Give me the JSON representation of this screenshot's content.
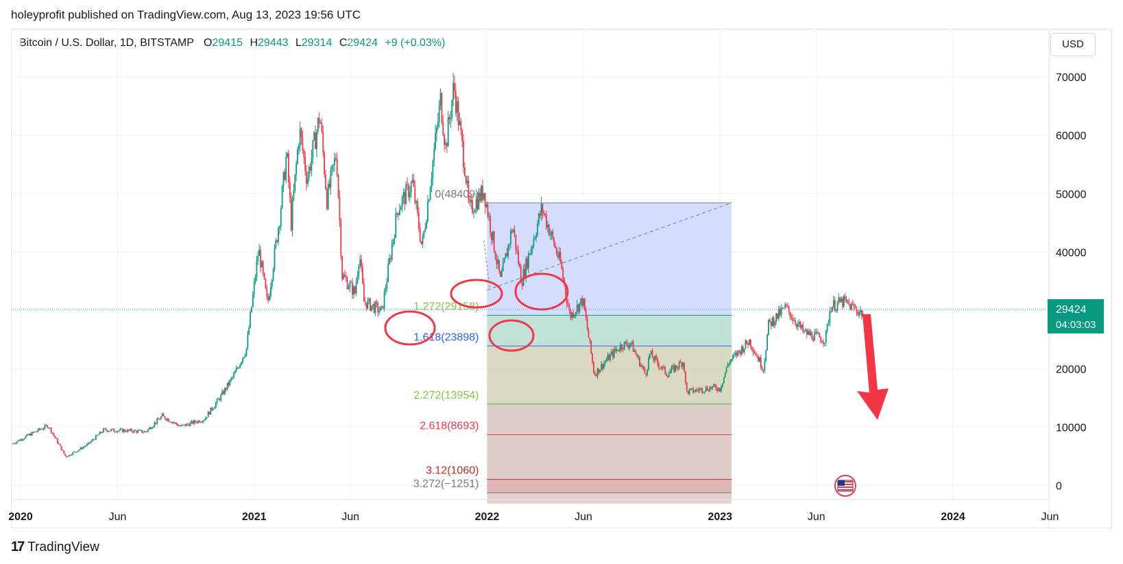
{
  "header": {
    "publish_line": "holeyprofit published on TradingView.com, Aug 13, 2023 19:56 UTC"
  },
  "symbol": {
    "name": "Bitcoin / U.S. Dollar, 1D, BITSTAMP",
    "open_label": "O",
    "open": "29415",
    "high_label": "H",
    "high": "29443",
    "low_label": "L",
    "low": "29314",
    "close_label": "C",
    "close": "29424",
    "change": "+9 (+0.03%)"
  },
  "currency_button": "USD",
  "price_tag": {
    "price": "29424",
    "countdown": "04:03:03"
  },
  "footer": {
    "logo_mark": "17",
    "brand": "TradingView"
  },
  "colors": {
    "up": "#089981",
    "down": "#f23645",
    "fib_top": "#cdd7fb",
    "fib_mid1": "#b7dcd0",
    "fib_mid2": "#d2d4b6",
    "fib_low": "#d9c4bf",
    "annotation": "#f23645"
  },
  "chart_data": {
    "type": "candlestick",
    "symbol": "Bitcoin / U.S. Dollar",
    "interval": "1D",
    "exchange": "BITSTAMP",
    "y_axis": {
      "ticks": [
        0,
        10000,
        20000,
        30000,
        40000,
        50000,
        60000,
        70000
      ],
      "ylim": [
        -2400,
        72600
      ],
      "position": "right"
    },
    "x_axis": {
      "ticks": [
        "2020",
        "Jun",
        "2021",
        "Jun",
        "2022",
        "Jun",
        "2023",
        "Jun",
        "2024",
        "Jun"
      ]
    },
    "current_price": 29424,
    "price_path": [
      [
        "2019-12-20",
        7200
      ],
      [
        "2020-01-15",
        8700
      ],
      [
        "2020-02-13",
        10300
      ],
      [
        "2020-03-12",
        4900
      ],
      [
        "2020-04-15",
        7000
      ],
      [
        "2020-05-10",
        9500
      ],
      [
        "2020-06-15",
        9400
      ],
      [
        "2020-07-15",
        9200
      ],
      [
        "2020-08-10",
        11900
      ],
      [
        "2020-09-08",
        10100
      ],
      [
        "2020-10-15",
        11400
      ],
      [
        "2020-11-10",
        15300
      ],
      [
        "2020-12-01",
        19000
      ],
      [
        "2020-12-20",
        23500
      ],
      [
        "2021-01-08",
        40500
      ],
      [
        "2021-01-22",
        31000
      ],
      [
        "2021-02-10",
        46000
      ],
      [
        "2021-02-21",
        57000
      ],
      [
        "2021-02-28",
        45000
      ],
      [
        "2021-03-13",
        61000
      ],
      [
        "2021-03-25",
        52500
      ],
      [
        "2021-04-14",
        63500
      ],
      [
        "2021-04-25",
        49000
      ],
      [
        "2021-05-10",
        57000
      ],
      [
        "2021-05-19",
        36000
      ],
      [
        "2021-06-08",
        33000
      ],
      [
        "2021-06-15",
        40000
      ],
      [
        "2021-06-22",
        31500
      ],
      [
        "2021-07-20",
        29800
      ],
      [
        "2021-08-14",
        47500
      ],
      [
        "2021-09-06",
        51800
      ],
      [
        "2021-09-21",
        40700
      ],
      [
        "2021-10-20",
        66000
      ],
      [
        "2021-10-28",
        58000
      ],
      [
        "2021-11-10",
        68500
      ],
      [
        "2021-11-28",
        54000
      ],
      [
        "2021-12-04",
        47000
      ],
      [
        "2021-12-27",
        50500
      ],
      [
        "2022-01-22",
        35000
      ],
      [
        "2022-02-10",
        44500
      ],
      [
        "2022-02-24",
        35000
      ],
      [
        "2022-03-28",
        47600
      ],
      [
        "2022-04-26",
        38000
      ],
      [
        "2022-05-11",
        29000
      ],
      [
        "2022-05-31",
        31800
      ],
      [
        "2022-06-18",
        19000
      ],
      [
        "2022-07-08",
        21600
      ],
      [
        "2022-07-30",
        24000
      ],
      [
        "2022-08-14",
        24400
      ],
      [
        "2022-09-06",
        19000
      ],
      [
        "2022-09-13",
        22500
      ],
      [
        "2022-10-10",
        19100
      ],
      [
        "2022-11-05",
        21300
      ],
      [
        "2022-11-09",
        16000
      ],
      [
        "2022-12-20",
        16800
      ],
      [
        "2023-01-01",
        16600
      ],
      [
        "2023-01-14",
        21000
      ],
      [
        "2023-02-16",
        24800
      ],
      [
        "2023-03-10",
        20000
      ],
      [
        "2023-03-18",
        27500
      ],
      [
        "2023-04-14",
        30500
      ],
      [
        "2023-05-12",
        26200
      ],
      [
        "2023-06-15",
        25000
      ],
      [
        "2023-06-23",
        30700
      ],
      [
        "2023-07-13",
        31500
      ],
      [
        "2023-08-13",
        29424
      ]
    ],
    "fibonacci_extension": {
      "start_date": "2022-01-01",
      "end_date": "2023-01-19",
      "levels": [
        {
          "label": "0(48409)",
          "level": 0,
          "price": 48409
        },
        {
          "label": "1.272(29158)",
          "level": 1.272,
          "price": 29158
        },
        {
          "label": "1.618(23898)",
          "level": 1.618,
          "price": 23898
        },
        {
          "label": "2.272(13954)",
          "level": 2.272,
          "price": 13954
        },
        {
          "label": "2.618(8693)",
          "level": 2.618,
          "price": 8693
        },
        {
          "label": "3.12(1060)",
          "level": 3.12,
          "price": 1060
        },
        {
          "label": "3.272(−1251)",
          "level": 3.272,
          "price": -1251
        }
      ]
    },
    "annotations": [
      "4 hand-drawn red circles around consolidation zones",
      "red down arrow after Aug 2023"
    ]
  }
}
